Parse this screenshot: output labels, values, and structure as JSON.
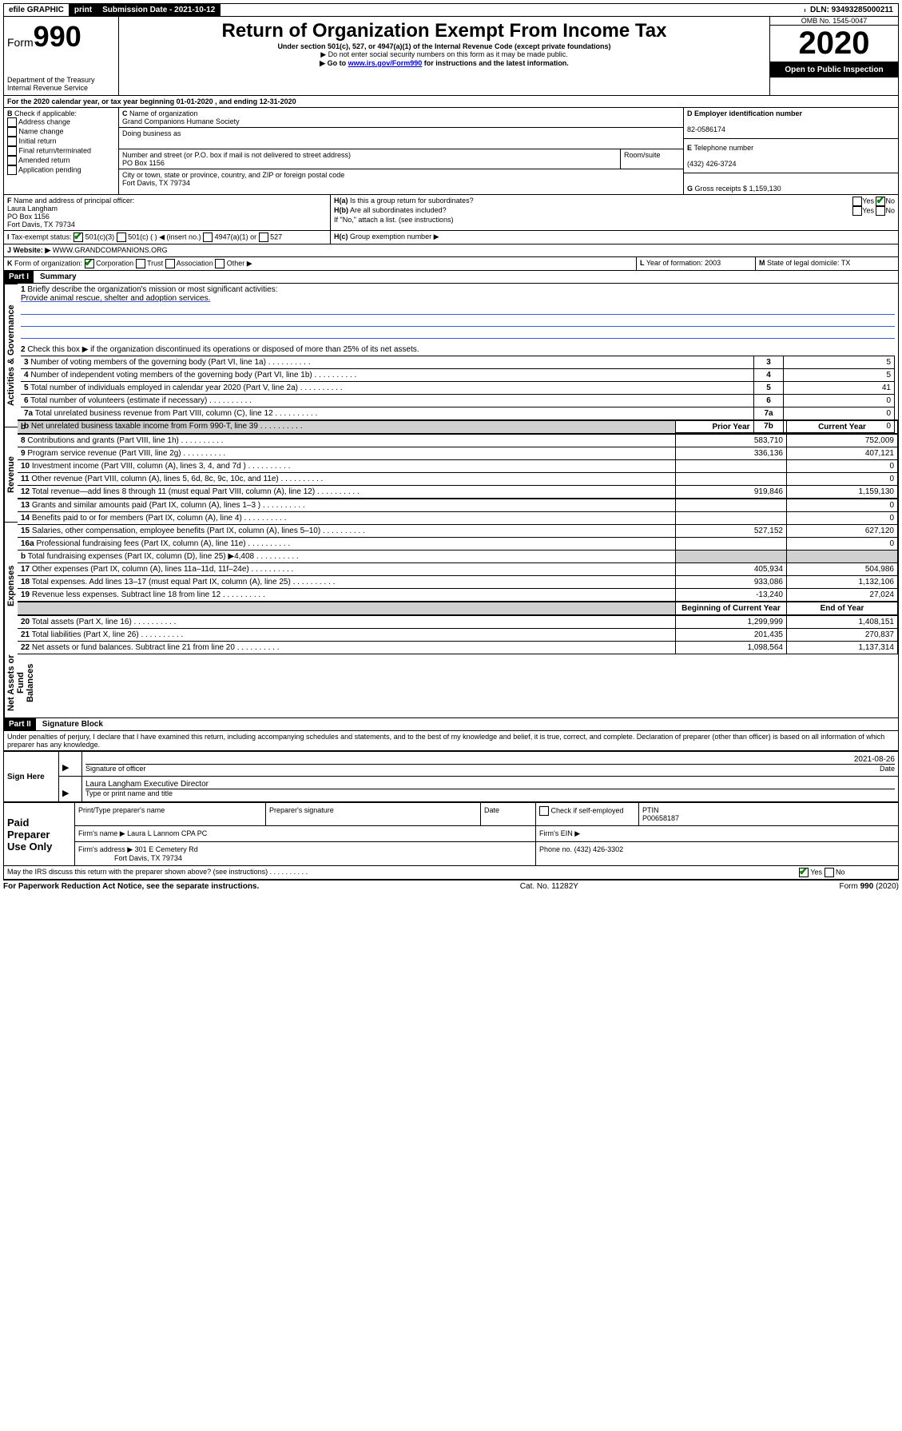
{
  "top": {
    "efile": "efile GRAPHIC",
    "print": "print",
    "submission": "Submission Date - 2021-10-12",
    "dln": "DLN: 93493285000211"
  },
  "header": {
    "form_prefix": "Form",
    "form_number": "990",
    "title": "Return of Organization Exempt From Income Tax",
    "subtitle": "Under section 501(c), 527, or 4947(a)(1) of the Internal Revenue Code (except private foundations)",
    "note1": "▶ Do not enter social security numbers on this form as it may be made public.",
    "note2_prefix": "▶ Go to ",
    "note2_link": "www.irs.gov/Form990",
    "note2_suffix": " for instructions and the latest information.",
    "dept": "Department of the Treasury\nInternal Revenue Service",
    "omb": "OMB No. 1545-0047",
    "year": "2020",
    "open": "Open to Public Inspection"
  },
  "sectionA": {
    "line": "For the 2020 calendar year, or tax year beginning 01-01-2020     , and ending 12-31-2020",
    "checkB_label": "Check if applicable:",
    "addr_change": "Address change",
    "name_change": "Name change",
    "initial": "Initial return",
    "final": "Final return/terminated",
    "amended": "Amended return",
    "app_pending": "Application pending",
    "c_label": "Name of organization",
    "org_name": "Grand Companions Humane Society",
    "dba_label": "Doing business as",
    "addr_label": "Number and street (or P.O. box if mail is not delivered to street address)",
    "addr": "PO Box 1156",
    "room": "Room/suite",
    "city_label": "City or town, state or province, country, and ZIP or foreign postal code",
    "city": "Fort Davis, TX   79734",
    "d_label": "Employer identification number",
    "ein": "82-0586174",
    "e_label": "Telephone number",
    "phone": "(432) 426-3724",
    "g_label": "Gross receipts $",
    "gross": "1,159,130",
    "f_label": "Name and address of principal officer:",
    "officer_name": "Laura Langham",
    "officer_addr1": "PO Box 1156",
    "officer_addr2": "Fort Davis, TX   79734",
    "ha": "Is this a group return for subordinates?",
    "hb": "Are all subordinates included?",
    "hb_note": "If \"No,\" attach a list. (see instructions)",
    "hc": "Group exemption number ▶",
    "tax_exempt": "Tax-exempt status:",
    "te_501c3": "501(c)(3)",
    "te_501c": "501(c) (   ) ◀ (insert no.)",
    "te_4947": "4947(a)(1) or",
    "te_527": "527",
    "website_label": "Website: ▶",
    "website": "WWW.GRANDCOMPANIONS.ORG",
    "k_label": "Form of organization:",
    "k_corp": "Corporation",
    "k_trust": "Trust",
    "k_assoc": "Association",
    "k_other": "Other ▶",
    "l_label": "Year of formation:",
    "l_val": "2003",
    "m_label": "State of legal domicile:",
    "m_val": "TX"
  },
  "part1": {
    "label": "Part I",
    "title": "Summary",
    "q1": "Briefly describe the organization's mission or most significant activities:",
    "mission": "Provide animal rescue, shelter and adoption services.",
    "q2": "Check this box ▶          if the organization discontinued its operations or disposed of more than 25% of its net assets.",
    "sections": {
      "gov": "Activities & Governance",
      "rev": "Revenue",
      "exp": "Expenses",
      "net": "Net Assets or Fund Balances"
    },
    "prior": "Prior Year",
    "current": "Current Year",
    "begin": "Beginning of Current Year",
    "end": "End of Year",
    "rows": [
      {
        "n": "3",
        "t": "Number of voting members of the governing body (Part VI, line 1a)",
        "box": "3",
        "v": "5"
      },
      {
        "n": "4",
        "t": "Number of independent voting members of the governing body (Part VI, line 1b)",
        "box": "4",
        "v": "5"
      },
      {
        "n": "5",
        "t": "Total number of individuals employed in calendar year 2020 (Part V, line 2a)",
        "box": "5",
        "v": "41"
      },
      {
        "n": "6",
        "t": "Total number of volunteers (estimate if necessary)",
        "box": "6",
        "v": "0"
      },
      {
        "n": "7a",
        "t": "Total unrelated business revenue from Part VIII, column (C), line 12",
        "box": "7a",
        "v": "0"
      },
      {
        "n": "b",
        "t": "Net unrelated business taxable income from Form 990-T, line 39",
        "box": "7b",
        "v": "0"
      }
    ],
    "rev_rows": [
      {
        "n": "8",
        "t": "Contributions and grants (Part VIII, line 1h)",
        "p": "583,710",
        "c": "752,009"
      },
      {
        "n": "9",
        "t": "Program service revenue (Part VIII, line 2g)",
        "p": "336,136",
        "c": "407,121"
      },
      {
        "n": "10",
        "t": "Investment income (Part VIII, column (A), lines 3, 4, and 7d )",
        "p": "",
        "c": "0"
      },
      {
        "n": "11",
        "t": "Other revenue (Part VIII, column (A), lines 5, 6d, 8c, 9c, 10c, and 11e)",
        "p": "",
        "c": "0"
      },
      {
        "n": "12",
        "t": "Total revenue—add lines 8 through 11 (must equal Part VIII, column (A), line 12)",
        "p": "919,846",
        "c": "1,159,130"
      }
    ],
    "exp_rows": [
      {
        "n": "13",
        "t": "Grants and similar amounts paid (Part IX, column (A), lines 1–3 )",
        "p": "",
        "c": "0"
      },
      {
        "n": "14",
        "t": "Benefits paid to or for members (Part IX, column (A), line 4)",
        "p": "",
        "c": "0"
      },
      {
        "n": "15",
        "t": "Salaries, other compensation, employee benefits (Part IX, column (A), lines 5–10)",
        "p": "527,152",
        "c": "627,120"
      },
      {
        "n": "16a",
        "t": "Professional fundraising fees (Part IX, column (A), line 11e)",
        "p": "",
        "c": "0"
      },
      {
        "n": "b",
        "t": "Total fundraising expenses (Part IX, column (D), line 25) ▶4,408",
        "p": "gray",
        "c": "gray"
      },
      {
        "n": "17",
        "t": "Other expenses (Part IX, column (A), lines 11a–11d, 11f–24e)",
        "p": "405,934",
        "c": "504,986"
      },
      {
        "n": "18",
        "t": "Total expenses. Add lines 13–17 (must equal Part IX, column (A), line 25)",
        "p": "933,086",
        "c": "1,132,106"
      },
      {
        "n": "19",
        "t": "Revenue less expenses. Subtract line 18 from line 12",
        "p": "-13,240",
        "c": "27,024"
      }
    ],
    "net_rows": [
      {
        "n": "20",
        "t": "Total assets (Part X, line 16)",
        "p": "1,299,999",
        "c": "1,408,151"
      },
      {
        "n": "21",
        "t": "Total liabilities (Part X, line 26)",
        "p": "201,435",
        "c": "270,837"
      },
      {
        "n": "22",
        "t": "Net assets or fund balances. Subtract line 21 from line 20",
        "p": "1,098,564",
        "c": "1,137,314"
      }
    ]
  },
  "part2": {
    "label": "Part II",
    "title": "Signature Block",
    "decl": "Under penalties of perjury, I declare that I have examined this return, including accompanying schedules and statements, and to the best of my knowledge and belief, it is true, correct, and complete. Declaration of preparer (other than officer) is based on all information of which preparer has any knowledge.",
    "sign_here": "Sign Here",
    "sig_officer": "Signature of officer",
    "sig_date": "2021-08-26",
    "date_lbl": "Date",
    "officer_name": "Laura Langham  Executive Director",
    "type_name": "Type or print name and title",
    "paid": "Paid Preparer Use Only",
    "prep_name_lbl": "Print/Type preparer's name",
    "prep_sig_lbl": "Preparer's signature",
    "check_self": "Check          if self-employed",
    "ptin_lbl": "PTIN",
    "ptin": "P00658187",
    "firm_name_lbl": "Firm's name     ▶",
    "firm_name": "Laura L Lannom CPA PC",
    "firm_ein_lbl": "Firm's EIN ▶",
    "firm_addr_lbl": "Firm's address ▶",
    "firm_addr1": "301 E Cemetery Rd",
    "firm_addr2": "Fort Davis, TX   79734",
    "firm_phone_lbl": "Phone no.",
    "firm_phone": "(432) 426-3302",
    "discuss": "May the IRS discuss this return with the preparer shown above? (see instructions)"
  },
  "footer": {
    "pra": "For Paperwork Reduction Act Notice, see the separate instructions.",
    "cat": "Cat. No. 11282Y",
    "form": "Form 990 (2020)"
  }
}
